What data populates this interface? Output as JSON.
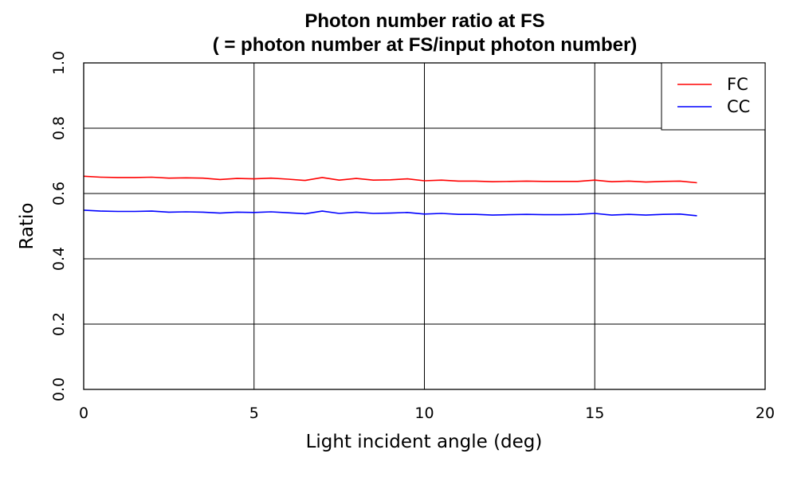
{
  "chart_data": {
    "type": "line",
    "title": "Photon number ratio at FS",
    "subtitle": "( = photon number at FS/input photon number)",
    "xlabel": "Light incident angle (deg)",
    "ylabel": "Ratio",
    "xlim": [
      0,
      20
    ],
    "ylim": [
      0,
      1.0
    ],
    "xticks": [
      0,
      5,
      10,
      15,
      20
    ],
    "xtick_labels": [
      "0",
      "5",
      "10",
      "15",
      "20"
    ],
    "yticks": [
      0,
      0.2,
      0.4,
      0.6,
      0.8,
      1.0
    ],
    "ytick_labels": [
      "0.0",
      "0.2",
      "0.4",
      "0.6",
      "0.8",
      "1.0"
    ],
    "grid": true,
    "legend_position": "top-right",
    "x": [
      0,
      0.5,
      1,
      1.5,
      2,
      2.5,
      3,
      3.5,
      4,
      4.5,
      5,
      5.5,
      6,
      6.5,
      7,
      7.5,
      8,
      8.5,
      9,
      9.5,
      10,
      10.5,
      11,
      11.5,
      12,
      12.5,
      13,
      13.5,
      14,
      14.5,
      15,
      15.5,
      16,
      16.5,
      17,
      17.5,
      18
    ],
    "series": [
      {
        "name": "FC",
        "color": "#ff0000",
        "values": [
          0.653,
          0.65,
          0.649,
          0.649,
          0.65,
          0.647,
          0.648,
          0.647,
          0.643,
          0.646,
          0.645,
          0.647,
          0.644,
          0.64,
          0.649,
          0.641,
          0.646,
          0.641,
          0.642,
          0.645,
          0.639,
          0.641,
          0.638,
          0.638,
          0.636,
          0.637,
          0.638,
          0.637,
          0.637,
          0.637,
          0.641,
          0.636,
          0.638,
          0.635,
          0.637,
          0.638,
          0.633
        ]
      },
      {
        "name": "CC",
        "color": "#0000ff",
        "values": [
          0.549,
          0.546,
          0.545,
          0.545,
          0.546,
          0.543,
          0.544,
          0.543,
          0.54,
          0.543,
          0.542,
          0.544,
          0.541,
          0.538,
          0.546,
          0.539,
          0.543,
          0.539,
          0.54,
          0.542,
          0.537,
          0.539,
          0.536,
          0.536,
          0.534,
          0.535,
          0.536,
          0.535,
          0.535,
          0.536,
          0.539,
          0.534,
          0.536,
          0.534,
          0.536,
          0.537,
          0.532
        ]
      }
    ]
  }
}
